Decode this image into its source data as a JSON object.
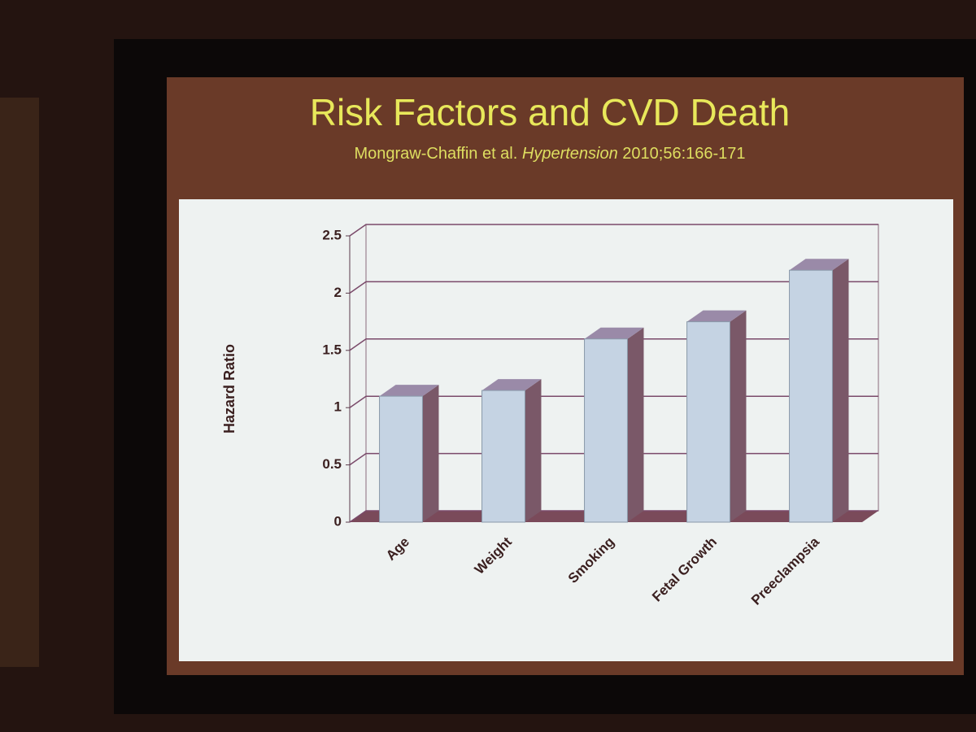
{
  "chart_data": {
    "type": "bar3d",
    "title": "Risk Factors and CVD Death",
    "subtitle": {
      "authors": "Mongraw-Chaffin et al.",
      "journal": "Hypertension",
      "ref": "2010;56:166-171"
    },
    "y_label": "Hazard Ratio",
    "categories": [
      "Age",
      "Weight",
      "Smoking",
      "Fetal Growth",
      "Preeclampsia"
    ],
    "values": [
      1.1,
      1.15,
      1.6,
      1.75,
      2.2
    ],
    "color": "#c5d3e3",
    "ylim": [
      0,
      2.5
    ],
    "yticks": [
      0,
      0.5,
      1,
      1.5,
      2,
      2.5
    ],
    "grid": true
  }
}
